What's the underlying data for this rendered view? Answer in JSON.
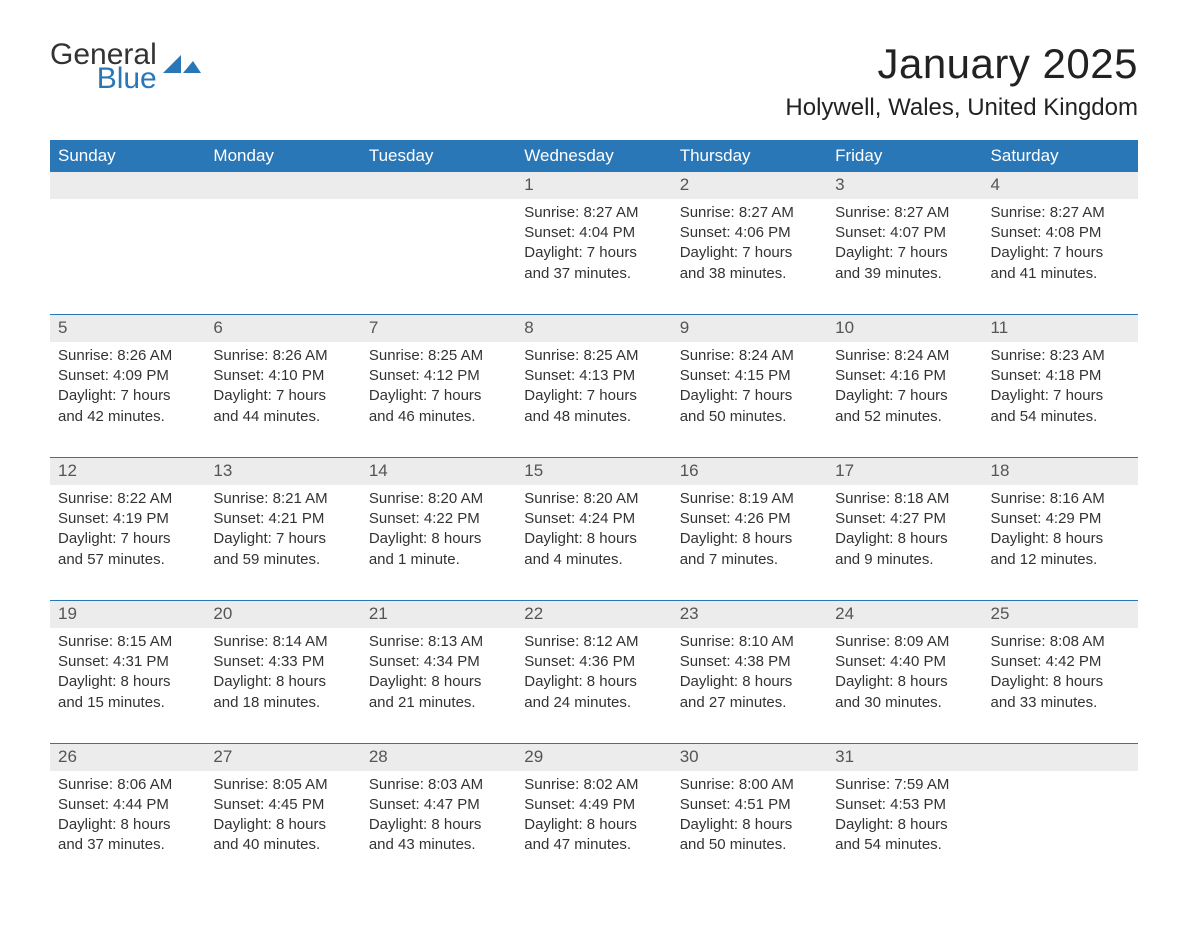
{
  "brand": {
    "line1": "General",
    "line2": "Blue",
    "color_dark": "#333333",
    "color_blue": "#2a77b8"
  },
  "title": "January 2025",
  "location": "Holywell, Wales, United Kingdom",
  "style": {
    "header_bg": "#2a77b8",
    "header_fg": "#ffffff",
    "stripe_bg": "#ececec",
    "row_divider": "#2a77b8",
    "text_color": "#333333",
    "background": "#ffffff",
    "title_fontsize": 42,
    "location_fontsize": 24,
    "body_fontsize": 15
  },
  "day_headers": [
    "Sunday",
    "Monday",
    "Tuesday",
    "Wednesday",
    "Thursday",
    "Friday",
    "Saturday"
  ],
  "weeks": [
    [
      null,
      null,
      null,
      {
        "n": "1",
        "sr": "Sunrise: 8:27 AM",
        "ss": "Sunset: 4:04 PM",
        "d1": "Daylight: 7 hours",
        "d2": "and 37 minutes."
      },
      {
        "n": "2",
        "sr": "Sunrise: 8:27 AM",
        "ss": "Sunset: 4:06 PM",
        "d1": "Daylight: 7 hours",
        "d2": "and 38 minutes."
      },
      {
        "n": "3",
        "sr": "Sunrise: 8:27 AM",
        "ss": "Sunset: 4:07 PM",
        "d1": "Daylight: 7 hours",
        "d2": "and 39 minutes."
      },
      {
        "n": "4",
        "sr": "Sunrise: 8:27 AM",
        "ss": "Sunset: 4:08 PM",
        "d1": "Daylight: 7 hours",
        "d2": "and 41 minutes."
      }
    ],
    [
      {
        "n": "5",
        "sr": "Sunrise: 8:26 AM",
        "ss": "Sunset: 4:09 PM",
        "d1": "Daylight: 7 hours",
        "d2": "and 42 minutes."
      },
      {
        "n": "6",
        "sr": "Sunrise: 8:26 AM",
        "ss": "Sunset: 4:10 PM",
        "d1": "Daylight: 7 hours",
        "d2": "and 44 minutes."
      },
      {
        "n": "7",
        "sr": "Sunrise: 8:25 AM",
        "ss": "Sunset: 4:12 PM",
        "d1": "Daylight: 7 hours",
        "d2": "and 46 minutes."
      },
      {
        "n": "8",
        "sr": "Sunrise: 8:25 AM",
        "ss": "Sunset: 4:13 PM",
        "d1": "Daylight: 7 hours",
        "d2": "and 48 minutes."
      },
      {
        "n": "9",
        "sr": "Sunrise: 8:24 AM",
        "ss": "Sunset: 4:15 PM",
        "d1": "Daylight: 7 hours",
        "d2": "and 50 minutes."
      },
      {
        "n": "10",
        "sr": "Sunrise: 8:24 AM",
        "ss": "Sunset: 4:16 PM",
        "d1": "Daylight: 7 hours",
        "d2": "and 52 minutes."
      },
      {
        "n": "11",
        "sr": "Sunrise: 8:23 AM",
        "ss": "Sunset: 4:18 PM",
        "d1": "Daylight: 7 hours",
        "d2": "and 54 minutes."
      }
    ],
    [
      {
        "n": "12",
        "sr": "Sunrise: 8:22 AM",
        "ss": "Sunset: 4:19 PM",
        "d1": "Daylight: 7 hours",
        "d2": "and 57 minutes."
      },
      {
        "n": "13",
        "sr": "Sunrise: 8:21 AM",
        "ss": "Sunset: 4:21 PM",
        "d1": "Daylight: 7 hours",
        "d2": "and 59 minutes."
      },
      {
        "n": "14",
        "sr": "Sunrise: 8:20 AM",
        "ss": "Sunset: 4:22 PM",
        "d1": "Daylight: 8 hours",
        "d2": "and 1 minute."
      },
      {
        "n": "15",
        "sr": "Sunrise: 8:20 AM",
        "ss": "Sunset: 4:24 PM",
        "d1": "Daylight: 8 hours",
        "d2": "and 4 minutes."
      },
      {
        "n": "16",
        "sr": "Sunrise: 8:19 AM",
        "ss": "Sunset: 4:26 PM",
        "d1": "Daylight: 8 hours",
        "d2": "and 7 minutes."
      },
      {
        "n": "17",
        "sr": "Sunrise: 8:18 AM",
        "ss": "Sunset: 4:27 PM",
        "d1": "Daylight: 8 hours",
        "d2": "and 9 minutes."
      },
      {
        "n": "18",
        "sr": "Sunrise: 8:16 AM",
        "ss": "Sunset: 4:29 PM",
        "d1": "Daylight: 8 hours",
        "d2": "and 12 minutes."
      }
    ],
    [
      {
        "n": "19",
        "sr": "Sunrise: 8:15 AM",
        "ss": "Sunset: 4:31 PM",
        "d1": "Daylight: 8 hours",
        "d2": "and 15 minutes."
      },
      {
        "n": "20",
        "sr": "Sunrise: 8:14 AM",
        "ss": "Sunset: 4:33 PM",
        "d1": "Daylight: 8 hours",
        "d2": "and 18 minutes."
      },
      {
        "n": "21",
        "sr": "Sunrise: 8:13 AM",
        "ss": "Sunset: 4:34 PM",
        "d1": "Daylight: 8 hours",
        "d2": "and 21 minutes."
      },
      {
        "n": "22",
        "sr": "Sunrise: 8:12 AM",
        "ss": "Sunset: 4:36 PM",
        "d1": "Daylight: 8 hours",
        "d2": "and 24 minutes."
      },
      {
        "n": "23",
        "sr": "Sunrise: 8:10 AM",
        "ss": "Sunset: 4:38 PM",
        "d1": "Daylight: 8 hours",
        "d2": "and 27 minutes."
      },
      {
        "n": "24",
        "sr": "Sunrise: 8:09 AM",
        "ss": "Sunset: 4:40 PM",
        "d1": "Daylight: 8 hours",
        "d2": "and 30 minutes."
      },
      {
        "n": "25",
        "sr": "Sunrise: 8:08 AM",
        "ss": "Sunset: 4:42 PM",
        "d1": "Daylight: 8 hours",
        "d2": "and 33 minutes."
      }
    ],
    [
      {
        "n": "26",
        "sr": "Sunrise: 8:06 AM",
        "ss": "Sunset: 4:44 PM",
        "d1": "Daylight: 8 hours",
        "d2": "and 37 minutes."
      },
      {
        "n": "27",
        "sr": "Sunrise: 8:05 AM",
        "ss": "Sunset: 4:45 PM",
        "d1": "Daylight: 8 hours",
        "d2": "and 40 minutes."
      },
      {
        "n": "28",
        "sr": "Sunrise: 8:03 AM",
        "ss": "Sunset: 4:47 PM",
        "d1": "Daylight: 8 hours",
        "d2": "and 43 minutes."
      },
      {
        "n": "29",
        "sr": "Sunrise: 8:02 AM",
        "ss": "Sunset: 4:49 PM",
        "d1": "Daylight: 8 hours",
        "d2": "and 47 minutes."
      },
      {
        "n": "30",
        "sr": "Sunrise: 8:00 AM",
        "ss": "Sunset: 4:51 PM",
        "d1": "Daylight: 8 hours",
        "d2": "and 50 minutes."
      },
      {
        "n": "31",
        "sr": "Sunrise: 7:59 AM",
        "ss": "Sunset: 4:53 PM",
        "d1": "Daylight: 8 hours",
        "d2": "and 54 minutes."
      },
      null
    ]
  ]
}
